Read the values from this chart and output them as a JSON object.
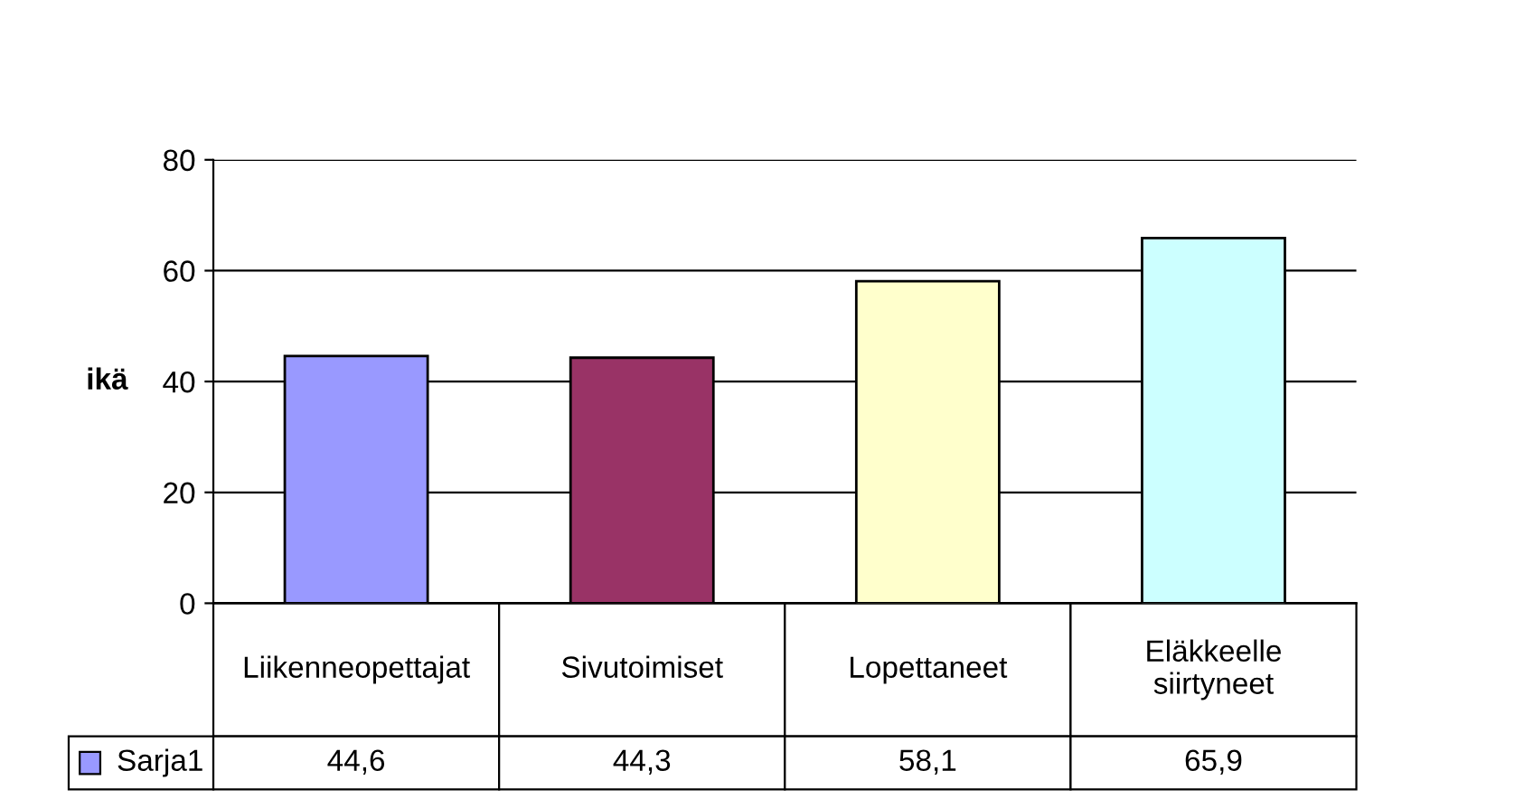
{
  "chart_data": {
    "type": "bar",
    "ylabel": "ikä",
    "categories": [
      "Liikenneopettajat",
      "Sivutoimiset",
      "Lopettaneet",
      "Eläkkeelle siirtyneet"
    ],
    "series": [
      {
        "name": "Sarja1",
        "color": "#9999ff",
        "colors": [
          "#9999ff",
          "#993366",
          "#ffffcc",
          "#ccffff"
        ],
        "values": [
          44.6,
          44.3,
          58.1,
          65.9
        ],
        "value_labels": [
          "44,6",
          "44,3",
          "58,1",
          "65,9"
        ]
      }
    ],
    "ylim": [
      0,
      80
    ],
    "yticks": [
      0,
      20,
      40,
      60,
      80
    ],
    "grid": "y"
  }
}
